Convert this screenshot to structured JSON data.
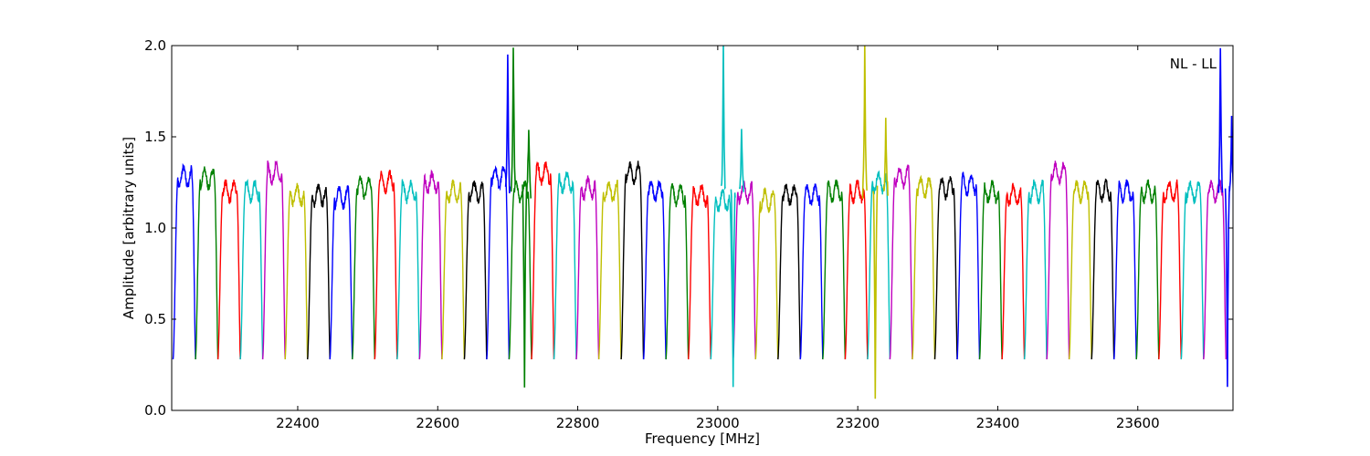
{
  "chart_data": {
    "type": "line",
    "title": "",
    "annotation": "NL - LL",
    "xlabel": "Frequency [MHz]",
    "ylabel": "Amplitude [arbitrary units]",
    "xlim": [
      22220,
      23736
    ],
    "ylim": [
      0.0,
      2.0
    ],
    "xticks": [
      22400,
      22600,
      22800,
      23000,
      23200,
      23400,
      23600
    ],
    "xtick_labels": [
      "22400",
      "22600",
      "22800",
      "23000",
      "23200",
      "23400",
      "23600"
    ],
    "yticks": [
      0.0,
      0.5,
      1.0,
      1.5,
      2.0
    ],
    "ytick_labels": [
      "0.0",
      "0.5",
      "1.0",
      "1.5",
      "2.0"
    ],
    "grid": false,
    "legend": "none",
    "color_cycle": [
      "#0000ff",
      "#008000",
      "#ff0000",
      "#00bfbf",
      "#bf00bf",
      "#bfbf00",
      "#000000"
    ],
    "band_width_mhz": 32,
    "band_starts_mhz": [
      22222,
      22254,
      22286,
      22318,
      22350,
      22382,
      22414,
      22446,
      22478,
      22510,
      22542,
      22574,
      22606,
      22638,
      22670,
      22702,
      22734,
      22766,
      22798,
      22830,
      22862,
      22894,
      22926,
      22958,
      22990,
      23022,
      23054,
      23086,
      23118,
      23150,
      23182,
      23214,
      23246,
      23278,
      23310,
      23342,
      23374,
      23406,
      23438,
      23470,
      23502,
      23534,
      23566,
      23598,
      23630,
      23662,
      23694
    ],
    "band_plateau_levels": [
      1.28,
      1.27,
      1.2,
      1.2,
      1.3,
      1.18,
      1.18,
      1.17,
      1.22,
      1.25,
      1.2,
      1.25,
      1.2,
      1.2,
      1.28,
      1.2,
      1.3,
      1.25,
      1.22,
      1.2,
      1.3,
      1.2,
      1.18,
      1.18,
      1.15,
      1.2,
      1.15,
      1.18,
      1.18,
      1.2,
      1.2,
      1.25,
      1.28,
      1.22,
      1.22,
      1.24,
      1.2,
      1.18,
      1.2,
      1.3,
      1.2,
      1.2,
      1.2,
      1.2,
      1.2,
      1.2,
      1.2
    ],
    "band_dip_min": 0.28,
    "spikes": [
      {
        "x": 22700,
        "peak": 1.95,
        "color": "#0000ff"
      },
      {
        "x": 22708,
        "peak": 2.0,
        "color": "#008000"
      },
      {
        "x": 22724,
        "peak": 0.1,
        "color": "#008000"
      },
      {
        "x": 22730,
        "peak": 1.57,
        "color": "#008000"
      },
      {
        "x": 23008,
        "peak": 2.0,
        "color": "#00bfbf"
      },
      {
        "x": 23022,
        "peak": 0.12,
        "color": "#00bfbf"
      },
      {
        "x": 23034,
        "peak": 1.55,
        "color": "#00bfbf"
      },
      {
        "x": 23210,
        "peak": 2.0,
        "color": "#bfbf00"
      },
      {
        "x": 23225,
        "peak": 0.1,
        "color": "#bfbf00"
      },
      {
        "x": 23240,
        "peak": 1.58,
        "color": "#bfbf00"
      },
      {
        "x": 23718,
        "peak": 2.0,
        "color": "#0000ff"
      },
      {
        "x": 23728,
        "peak": 0.12,
        "color": "#0000ff"
      },
      {
        "x": 23734,
        "peak": 1.58,
        "color": "#0000ff"
      }
    ]
  }
}
